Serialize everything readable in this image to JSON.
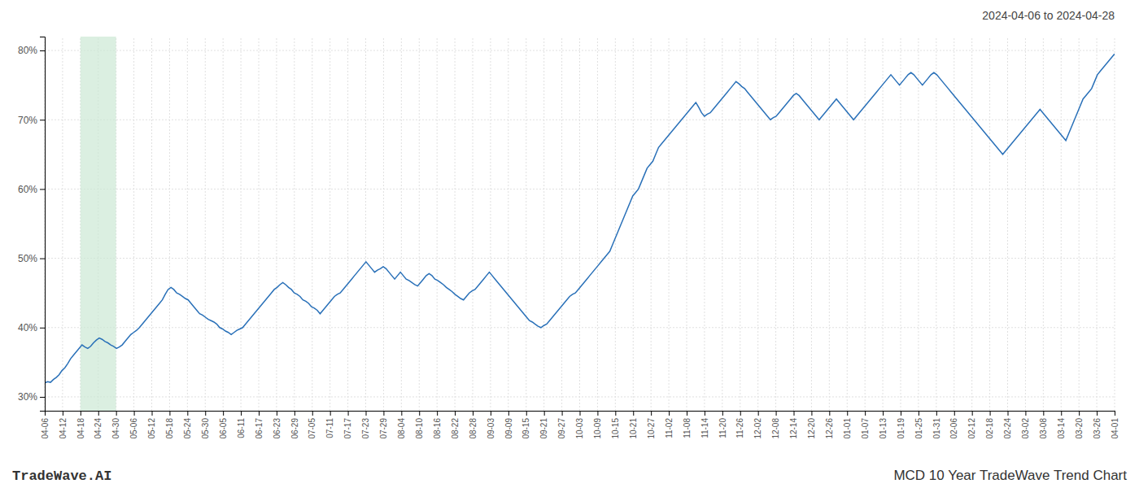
{
  "chart_data": {
    "type": "line",
    "title": "2024-04-06 to 2024-04-28",
    "annotations": [
      "TradeWave.AI",
      "MCD 10 Year TradeWave Trend Chart"
    ],
    "color": "#2970b8",
    "grid": true,
    "xlim": [
      0,
      373
    ],
    "xticks": [
      {
        "value": 0,
        "label": "04-06"
      },
      {
        "value": 6.216667,
        "label": "04-12"
      },
      {
        "value": 12.433333,
        "label": "04-18"
      },
      {
        "value": 18.65,
        "label": "04-24"
      },
      {
        "value": 24.866667,
        "label": "04-30"
      },
      {
        "value": 31.083333,
        "label": "05-06"
      },
      {
        "value": 37.3,
        "label": "05-12"
      },
      {
        "value": 43.516667,
        "label": "05-18"
      },
      {
        "value": 49.733333,
        "label": "05-24"
      },
      {
        "value": 55.95,
        "label": "05-30"
      },
      {
        "value": 62.166667,
        "label": "06-05"
      },
      {
        "value": 68.383333,
        "label": "06-11"
      },
      {
        "value": 74.6,
        "label": "06-17"
      },
      {
        "value": 80.816667,
        "label": "06-23"
      },
      {
        "value": 87.033333,
        "label": "06-29"
      },
      {
        "value": 93.25,
        "label": "07-05"
      },
      {
        "value": 99.466667,
        "label": "07-11"
      },
      {
        "value": 105.683333,
        "label": "07-17"
      },
      {
        "value": 111.9,
        "label": "07-23"
      },
      {
        "value": 118.116667,
        "label": "07-29"
      },
      {
        "value": 124.333333,
        "label": "08-04"
      },
      {
        "value": 130.55,
        "label": "08-10"
      },
      {
        "value": 136.766667,
        "label": "08-16"
      },
      {
        "value": 142.983333,
        "label": "08-22"
      },
      {
        "value": 149.2,
        "label": "08-28"
      },
      {
        "value": 155.416667,
        "label": "09-03"
      },
      {
        "value": 161.633333,
        "label": "09-09"
      },
      {
        "value": 167.85,
        "label": "09-15"
      },
      {
        "value": 174.066667,
        "label": "09-21"
      },
      {
        "value": 180.283333,
        "label": "09-27"
      },
      {
        "value": 186.5,
        "label": "10-03"
      },
      {
        "value": 192.716667,
        "label": "10-09"
      },
      {
        "value": 198.933333,
        "label": "10-15"
      },
      {
        "value": 205.15,
        "label": "10-21"
      },
      {
        "value": 211.366667,
        "label": "10-27"
      },
      {
        "value": 217.583333,
        "label": "11-02"
      },
      {
        "value": 223.8,
        "label": "11-08"
      },
      {
        "value": 230.016667,
        "label": "11-14"
      },
      {
        "value": 236.233333,
        "label": "11-20"
      },
      {
        "value": 242.45,
        "label": "11-26"
      },
      {
        "value": 248.666667,
        "label": "12-02"
      },
      {
        "value": 254.883333,
        "label": "12-08"
      },
      {
        "value": 261.1,
        "label": "12-14"
      },
      {
        "value": 267.316667,
        "label": "12-20"
      },
      {
        "value": 273.533333,
        "label": "12-26"
      },
      {
        "value": 279.75,
        "label": "01-01"
      },
      {
        "value": 285.966667,
        "label": "01-07"
      },
      {
        "value": 292.183333,
        "label": "01-13"
      },
      {
        "value": 298.4,
        "label": "01-19"
      },
      {
        "value": 304.616667,
        "label": "01-25"
      },
      {
        "value": 310.833333,
        "label": "01-31"
      },
      {
        "value": 317.05,
        "label": "02-06"
      },
      {
        "value": 323.266667,
        "label": "02-12"
      },
      {
        "value": 329.483333,
        "label": "02-18"
      },
      {
        "value": 335.7,
        "label": "02-24"
      },
      {
        "value": 341.916667,
        "label": "03-02"
      },
      {
        "value": 348.133333,
        "label": "03-08"
      },
      {
        "value": 354.35,
        "label": "03-14"
      },
      {
        "value": 360.566667,
        "label": "03-20"
      },
      {
        "value": 366.783333,
        "label": "03-26"
      },
      {
        "value": 373,
        "label": "04-01"
      }
    ],
    "highlight": {
      "x": [
        12.433333,
        24.866667
      ],
      "color": "#cce8d4"
    },
    "ylim": [
      28,
      82
    ],
    "yticks": [
      {
        "value": 30,
        "label": "30%"
      },
      {
        "value": 40,
        "label": "40%"
      },
      {
        "value": 50,
        "label": "50%"
      },
      {
        "value": 60,
        "label": "60%"
      },
      {
        "value": 70,
        "label": "70%"
      },
      {
        "value": 80,
        "label": "80%"
      }
    ],
    "values": [
      32.0,
      32.2,
      32.1,
      32.5,
      32.8,
      33.2,
      33.8,
      34.2,
      34.8,
      35.5,
      36.0,
      36.5,
      37.0,
      37.5,
      37.2,
      37.0,
      37.3,
      37.8,
      38.2,
      38.5,
      38.3,
      38.0,
      37.8,
      37.5,
      37.3,
      37.0,
      37.2,
      37.5,
      38.0,
      38.5,
      39.0,
      39.3,
      39.6,
      40.0,
      40.5,
      41.0,
      41.5,
      42.0,
      42.5,
      43.0,
      43.5,
      44.0,
      44.8,
      45.5,
      45.8,
      45.5,
      45.0,
      44.8,
      44.5,
      44.2,
      44.0,
      43.5,
      43.0,
      42.5,
      42.0,
      41.8,
      41.5,
      41.2,
      41.0,
      40.8,
      40.5,
      40.0,
      39.8,
      39.5,
      39.3,
      39.0,
      39.3,
      39.6,
      39.8,
      40.0,
      40.5,
      41.0,
      41.5,
      42.0,
      42.5,
      43.0,
      43.5,
      44.0,
      44.5,
      45.0,
      45.5,
      45.8,
      46.2,
      46.5,
      46.2,
      45.8,
      45.5,
      45.0,
      44.8,
      44.5,
      44.0,
      43.8,
      43.5,
      43.0,
      42.8,
      42.5,
      42.0,
      42.5,
      43.0,
      43.5,
      44.0,
      44.5,
      44.8,
      45.0,
      45.5,
      46.0,
      46.5,
      47.0,
      47.5,
      48.0,
      48.5,
      49.0,
      49.5,
      49.0,
      48.5,
      48.0,
      48.3,
      48.5,
      48.8,
      48.5,
      48.0,
      47.5,
      47.0,
      47.5,
      48.0,
      47.5,
      47.0,
      46.8,
      46.5,
      46.2,
      46.0,
      46.5,
      47.0,
      47.5,
      47.8,
      47.5,
      47.0,
      46.8,
      46.5,
      46.2,
      45.8,
      45.5,
      45.2,
      44.8,
      44.5,
      44.2,
      44.0,
      44.5,
      45.0,
      45.3,
      45.5,
      46.0,
      46.5,
      47.0,
      47.5,
      48.0,
      47.5,
      47.0,
      46.5,
      46.0,
      45.5,
      45.0,
      44.5,
      44.0,
      43.5,
      43.0,
      42.5,
      42.0,
      41.5,
      41.0,
      40.8,
      40.5,
      40.2,
      40.0,
      40.3,
      40.5,
      41.0,
      41.5,
      42.0,
      42.5,
      43.0,
      43.5,
      44.0,
      44.5,
      44.8,
      45.0,
      45.5,
      46.0,
      46.5,
      47.0,
      47.5,
      48.0,
      48.5,
      49.0,
      49.5,
      50.0,
      50.5,
      51.0,
      52.0,
      53.0,
      54.0,
      55.0,
      56.0,
      57.0,
      58.0,
      59.0,
      59.5,
      60.0,
      61.0,
      62.0,
      63.0,
      63.5,
      64.0,
      65.0,
      66.0,
      66.5,
      67.0,
      67.5,
      68.0,
      68.5,
      69.0,
      69.5,
      70.0,
      70.5,
      71.0,
      71.5,
      72.0,
      72.5,
      71.8,
      71.0,
      70.5,
      70.8,
      71.0,
      71.5,
      72.0,
      72.5,
      73.0,
      73.5,
      74.0,
      74.5,
      75.0,
      75.5,
      75.2,
      74.8,
      74.5,
      74.0,
      73.5,
      73.0,
      72.5,
      72.0,
      71.5,
      71.0,
      70.5,
      70.0,
      70.3,
      70.5,
      71.0,
      71.5,
      72.0,
      72.5,
      73.0,
      73.5,
      73.8,
      73.5,
      73.0,
      72.5,
      72.0,
      71.5,
      71.0,
      70.5,
      70.0,
      70.5,
      71.0,
      71.5,
      72.0,
      72.5,
      73.0,
      72.5,
      72.0,
      71.5,
      71.0,
      70.5,
      70.0,
      70.5,
      71.0,
      71.5,
      72.0,
      72.5,
      73.0,
      73.5,
      74.0,
      74.5,
      75.0,
      75.5,
      76.0,
      76.5,
      76.0,
      75.5,
      75.0,
      75.5,
      76.0,
      76.5,
      76.8,
      76.5,
      76.0,
      75.5,
      75.0,
      75.5,
      76.0,
      76.5,
      76.8,
      76.5,
      76.0,
      75.5,
      75.0,
      74.5,
      74.0,
      73.5,
      73.0,
      72.5,
      72.0,
      71.5,
      71.0,
      70.5,
      70.0,
      69.5,
      69.0,
      68.5,
      68.0,
      67.5,
      67.0,
      66.5,
      66.0,
      65.5,
      65.0,
      65.5,
      66.0,
      66.5,
      67.0,
      67.5,
      68.0,
      68.5,
      69.0,
      69.5,
      70.0,
      70.5,
      71.0,
      71.5,
      71.0,
      70.5,
      70.0,
      69.5,
      69.0,
      68.5,
      68.0,
      67.5,
      67.0,
      68.0,
      69.0,
      70.0,
      71.0,
      72.0,
      73.0,
      73.5,
      74.0,
      74.5,
      75.5,
      76.5,
      77.0,
      77.5,
      78.0,
      78.5,
      79.0,
      79.5
    ]
  }
}
